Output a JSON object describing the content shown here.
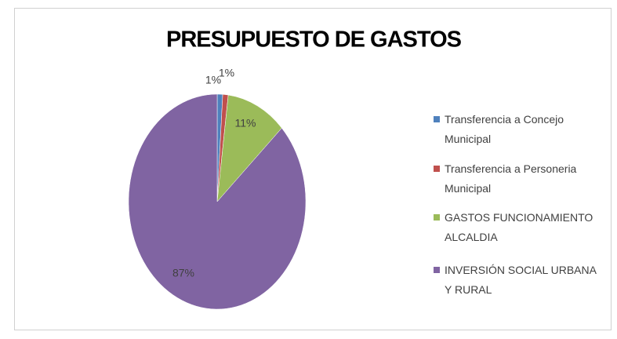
{
  "chart_data": {
    "type": "pie",
    "title": "PRESUPUESTO DE GASTOS",
    "categories": [
      "Transferencia a Concejo Municipal",
      "Transferencia a Personeria Municipal",
      "GASTOS FUNCIONAMIENTO ALCALDIA",
      "INVERSIÓN SOCIAL URBANA Y RURAL"
    ],
    "values": [
      1,
      1,
      11,
      87
    ],
    "value_labels": [
      "1%",
      "1%",
      "11%",
      "87%"
    ],
    "colors": [
      "#4f81bd",
      "#c0504d",
      "#9bbb59",
      "#8064a2"
    ],
    "legend": "right"
  }
}
